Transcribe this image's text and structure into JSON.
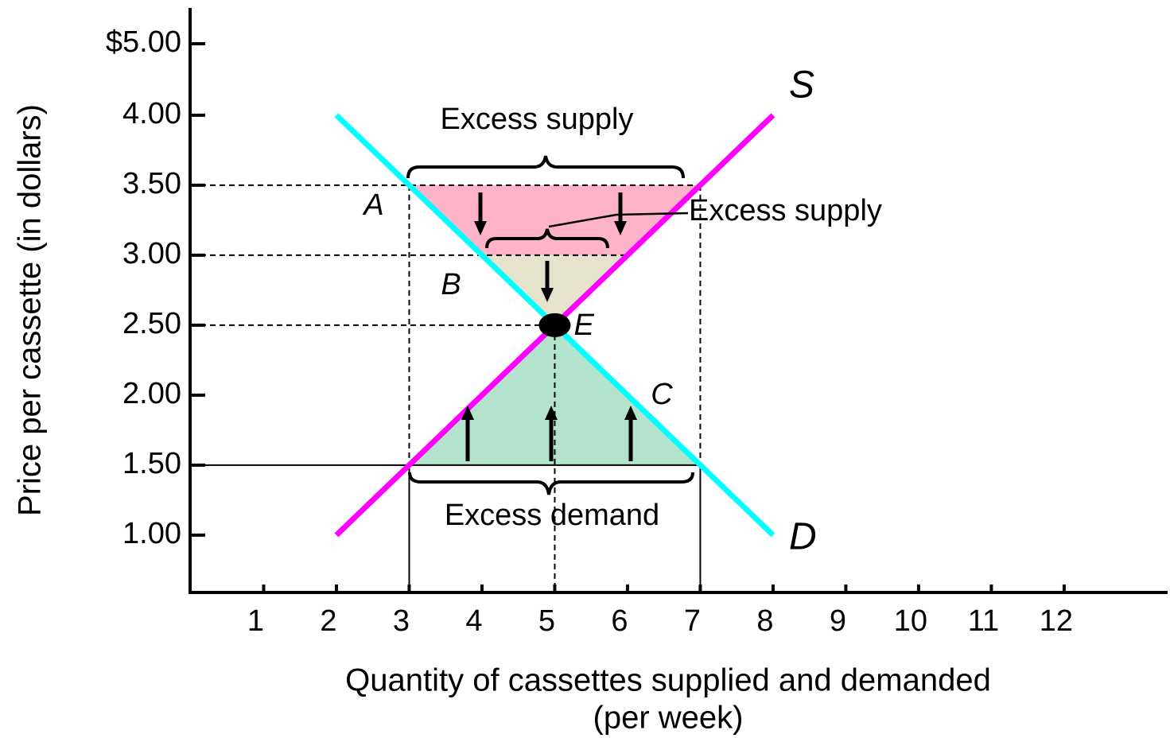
{
  "chart_data": {
    "type": "line",
    "xlabel": "Quantity of cassettes supplied and demanded",
    "xlabel_sub": "(per week)",
    "ylabel": "Price per cassette (in dollars)",
    "xlim": [
      0,
      13.4
    ],
    "xticks": [
      1,
      2,
      3,
      4,
      5,
      6,
      7,
      8,
      9,
      10,
      11,
      12
    ],
    "ylim": [
      0.59,
      5.5
    ],
    "yticks": [
      {
        "value": 1,
        "label": "1.00"
      },
      {
        "value": 1.5,
        "label": "1.50"
      },
      {
        "value": 2,
        "label": "2.00"
      },
      {
        "value": 2.5,
        "label": "2.50"
      },
      {
        "value": 3,
        "label": "3.00"
      },
      {
        "value": 3.5,
        "label": "3.50"
      },
      {
        "value": 4,
        "label": "4.00"
      },
      {
        "value": 5,
        "label": "$5.00"
      }
    ],
    "series": [
      {
        "name": "S",
        "color": "#ff00ff",
        "x": [
          2,
          8
        ],
        "values": [
          1,
          4
        ]
      },
      {
        "name": "D",
        "color": "#00ffff",
        "x": [
          2,
          8
        ],
        "values": [
          4,
          1
        ]
      }
    ],
    "equilibrium": {
      "label": "E",
      "x": 5,
      "y": 2.5
    },
    "bands": [
      {
        "from": 3,
        "to": 3.5,
        "color": "#ffb3c8"
      },
      {
        "from": 2.5,
        "to": 3,
        "color": "#e6e3cc"
      },
      {
        "from": 1.5,
        "to": 2.5,
        "color": "#b3e3cc"
      }
    ],
    "region_labels": [
      "A",
      "B",
      "C"
    ],
    "annotations": [
      "Excess supply",
      "Excess supply",
      "Excess demand"
    ]
  }
}
